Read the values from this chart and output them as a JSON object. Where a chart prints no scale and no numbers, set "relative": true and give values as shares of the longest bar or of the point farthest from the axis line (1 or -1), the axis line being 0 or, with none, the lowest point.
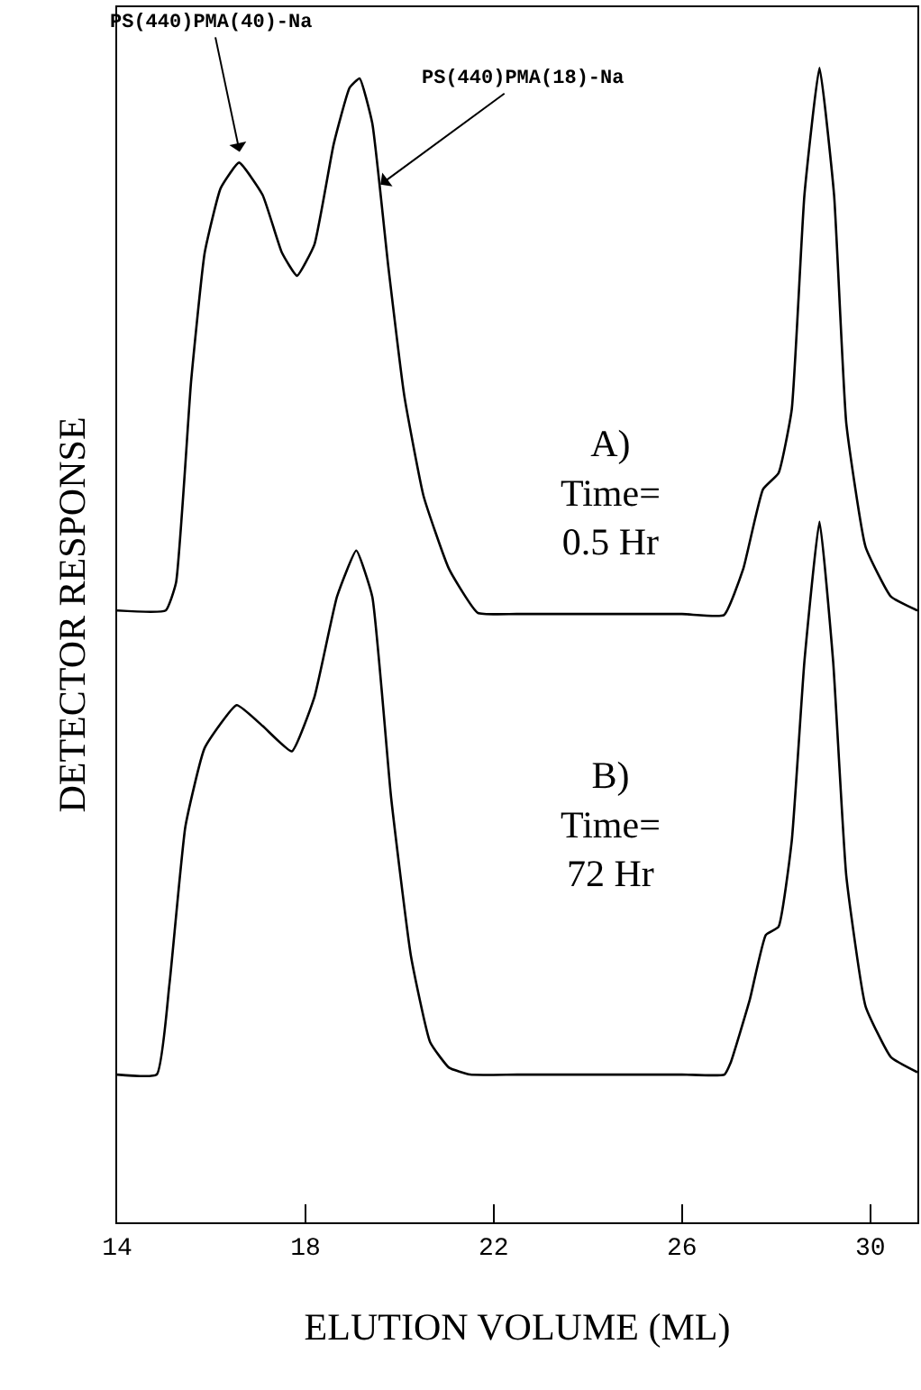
{
  "chart_data": {
    "type": "line",
    "relative": true,
    "xlabel": "ELUTION VOLUME (ML)",
    "ylabel": "DETECTOR RESPONSE",
    "xlim": [
      14,
      31
    ],
    "xticks": [
      14,
      18,
      22,
      26,
      30
    ],
    "marker": "none",
    "line_style": "solid",
    "series": [
      {
        "color": "#000000",
        "x": [
          14.0,
          15.03,
          15.25,
          15.57,
          15.86,
          16.2,
          16.59,
          17.09,
          17.5,
          17.82,
          18.19,
          18.6,
          18.94,
          19.15,
          19.42,
          19.76,
          20.1,
          20.51,
          21.05,
          21.66,
          22.5,
          26.0,
          26.89,
          27.3,
          27.72,
          28.05,
          28.33,
          28.6,
          28.92,
          29.23,
          29.49,
          29.9,
          30.44,
          31.0
        ],
        "values": [
          0.53,
          0.53,
          0.554,
          0.728,
          0.84,
          0.896,
          0.918,
          0.89,
          0.84,
          0.82,
          0.847,
          0.934,
          0.983,
          0.991,
          0.952,
          0.828,
          0.716,
          0.629,
          0.566,
          0.528,
          0.527,
          0.527,
          0.526,
          0.566,
          0.635,
          0.649,
          0.704,
          0.89,
          1.0,
          0.89,
          0.692,
          0.585,
          0.542,
          0.53
        ]
      },
      {
        "color": "#000000",
        "x": [
          14.0,
          14.84,
          15.11,
          15.45,
          15.86,
          16.54,
          17.09,
          17.71,
          18.19,
          18.67,
          19.08,
          19.42,
          19.82,
          20.24,
          20.65,
          21.05,
          21.5,
          22.5,
          26.0,
          26.9,
          27.03,
          27.44,
          27.78,
          28.05,
          28.33,
          28.6,
          28.92,
          29.21,
          29.49,
          29.9,
          30.44,
          31.0
        ],
        "values": [
          0.128,
          0.128,
          0.206,
          0.343,
          0.411,
          0.448,
          0.43,
          0.408,
          0.455,
          0.542,
          0.582,
          0.542,
          0.368,
          0.231,
          0.156,
          0.134,
          0.128,
          0.128,
          0.128,
          0.128,
          0.138,
          0.193,
          0.249,
          0.256,
          0.33,
          0.486,
          0.607,
          0.486,
          0.3,
          0.187,
          0.143,
          0.13
        ]
      }
    ],
    "annotations": [
      "PS(440)PMA(40)-Na",
      "PS(440)PMA(18)-Na",
      "A)\nTime=\n0.5 Hr",
      "B)\nTime=\n72 Hr"
    ]
  }
}
